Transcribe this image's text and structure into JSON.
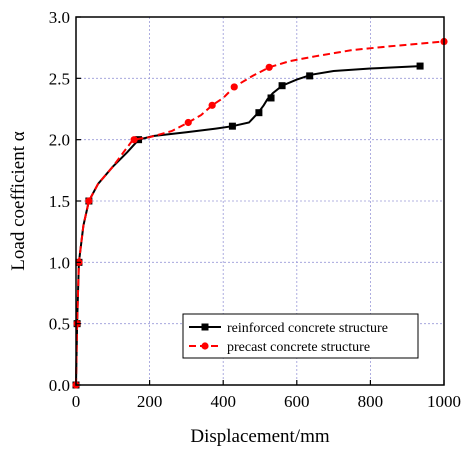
{
  "chart_data": {
    "type": "line",
    "title": "",
    "xlabel": "Displacement/mm",
    "ylabel": "Load coefficient α",
    "xlim": [
      0,
      1000
    ],
    "ylim": [
      0,
      3.0
    ],
    "x_ticks": [
      "0",
      "200",
      "400",
      "600",
      "800",
      "1000"
    ],
    "y_ticks": [
      "0.0",
      "0.5",
      "1.0",
      "1.5",
      "2.0",
      "2.5",
      "3.0"
    ],
    "grid": true,
    "legend_position": "lower-right",
    "series": [
      {
        "name": "reinforced concrete structure",
        "color": "#000000",
        "line_style": "solid",
        "marker": "square",
        "curve": [
          [
            0,
            0
          ],
          [
            3,
            0.5
          ],
          [
            8,
            1.0
          ],
          [
            20,
            1.3
          ],
          [
            35,
            1.5
          ],
          [
            60,
            1.64
          ],
          [
            100,
            1.78
          ],
          [
            140,
            1.9
          ],
          [
            170,
            2.0
          ],
          [
            210,
            2.03
          ],
          [
            300,
            2.06
          ],
          [
            380,
            2.09
          ],
          [
            425,
            2.11
          ],
          [
            470,
            2.14
          ],
          [
            495,
            2.22
          ],
          [
            510,
            2.28
          ],
          [
            520,
            2.33
          ],
          [
            535,
            2.38
          ],
          [
            560,
            2.44
          ],
          [
            600,
            2.49
          ],
          [
            640,
            2.53
          ],
          [
            700,
            2.56
          ],
          [
            800,
            2.58
          ],
          [
            935,
            2.6
          ]
        ],
        "points": [
          [
            0,
            0
          ],
          [
            3,
            0.5
          ],
          [
            8,
            1.0
          ],
          [
            35,
            1.5
          ],
          [
            170,
            2.0
          ],
          [
            425,
            2.11
          ],
          [
            497,
            2.22
          ],
          [
            530,
            2.34
          ],
          [
            560,
            2.44
          ],
          [
            635,
            2.52
          ],
          [
            935,
            2.6
          ]
        ]
      },
      {
        "name": "precast concrete structure",
        "color": "#ff0000",
        "line_style": "dashed",
        "marker": "circle",
        "curve": [
          [
            0,
            0
          ],
          [
            3,
            0.5
          ],
          [
            8,
            1.0
          ],
          [
            20,
            1.3
          ],
          [
            35,
            1.5
          ],
          [
            60,
            1.64
          ],
          [
            100,
            1.78
          ],
          [
            130,
            1.9
          ],
          [
            155,
            2.0
          ],
          [
            200,
            2.02
          ],
          [
            260,
            2.07
          ],
          [
            305,
            2.14
          ],
          [
            340,
            2.2
          ],
          [
            370,
            2.28
          ],
          [
            400,
            2.34
          ],
          [
            430,
            2.43
          ],
          [
            480,
            2.52
          ],
          [
            525,
            2.59
          ],
          [
            580,
            2.64
          ],
          [
            650,
            2.68
          ],
          [
            750,
            2.73
          ],
          [
            850,
            2.76
          ],
          [
            1000,
            2.8
          ]
        ],
        "points": [
          [
            0,
            0
          ],
          [
            3,
            0.5
          ],
          [
            8,
            1.0
          ],
          [
            35,
            1.5
          ],
          [
            158,
            2.0
          ],
          [
            305,
            2.14
          ],
          [
            370,
            2.28
          ],
          [
            430,
            2.43
          ],
          [
            525,
            2.59
          ],
          [
            1000,
            2.8
          ]
        ]
      }
    ]
  }
}
